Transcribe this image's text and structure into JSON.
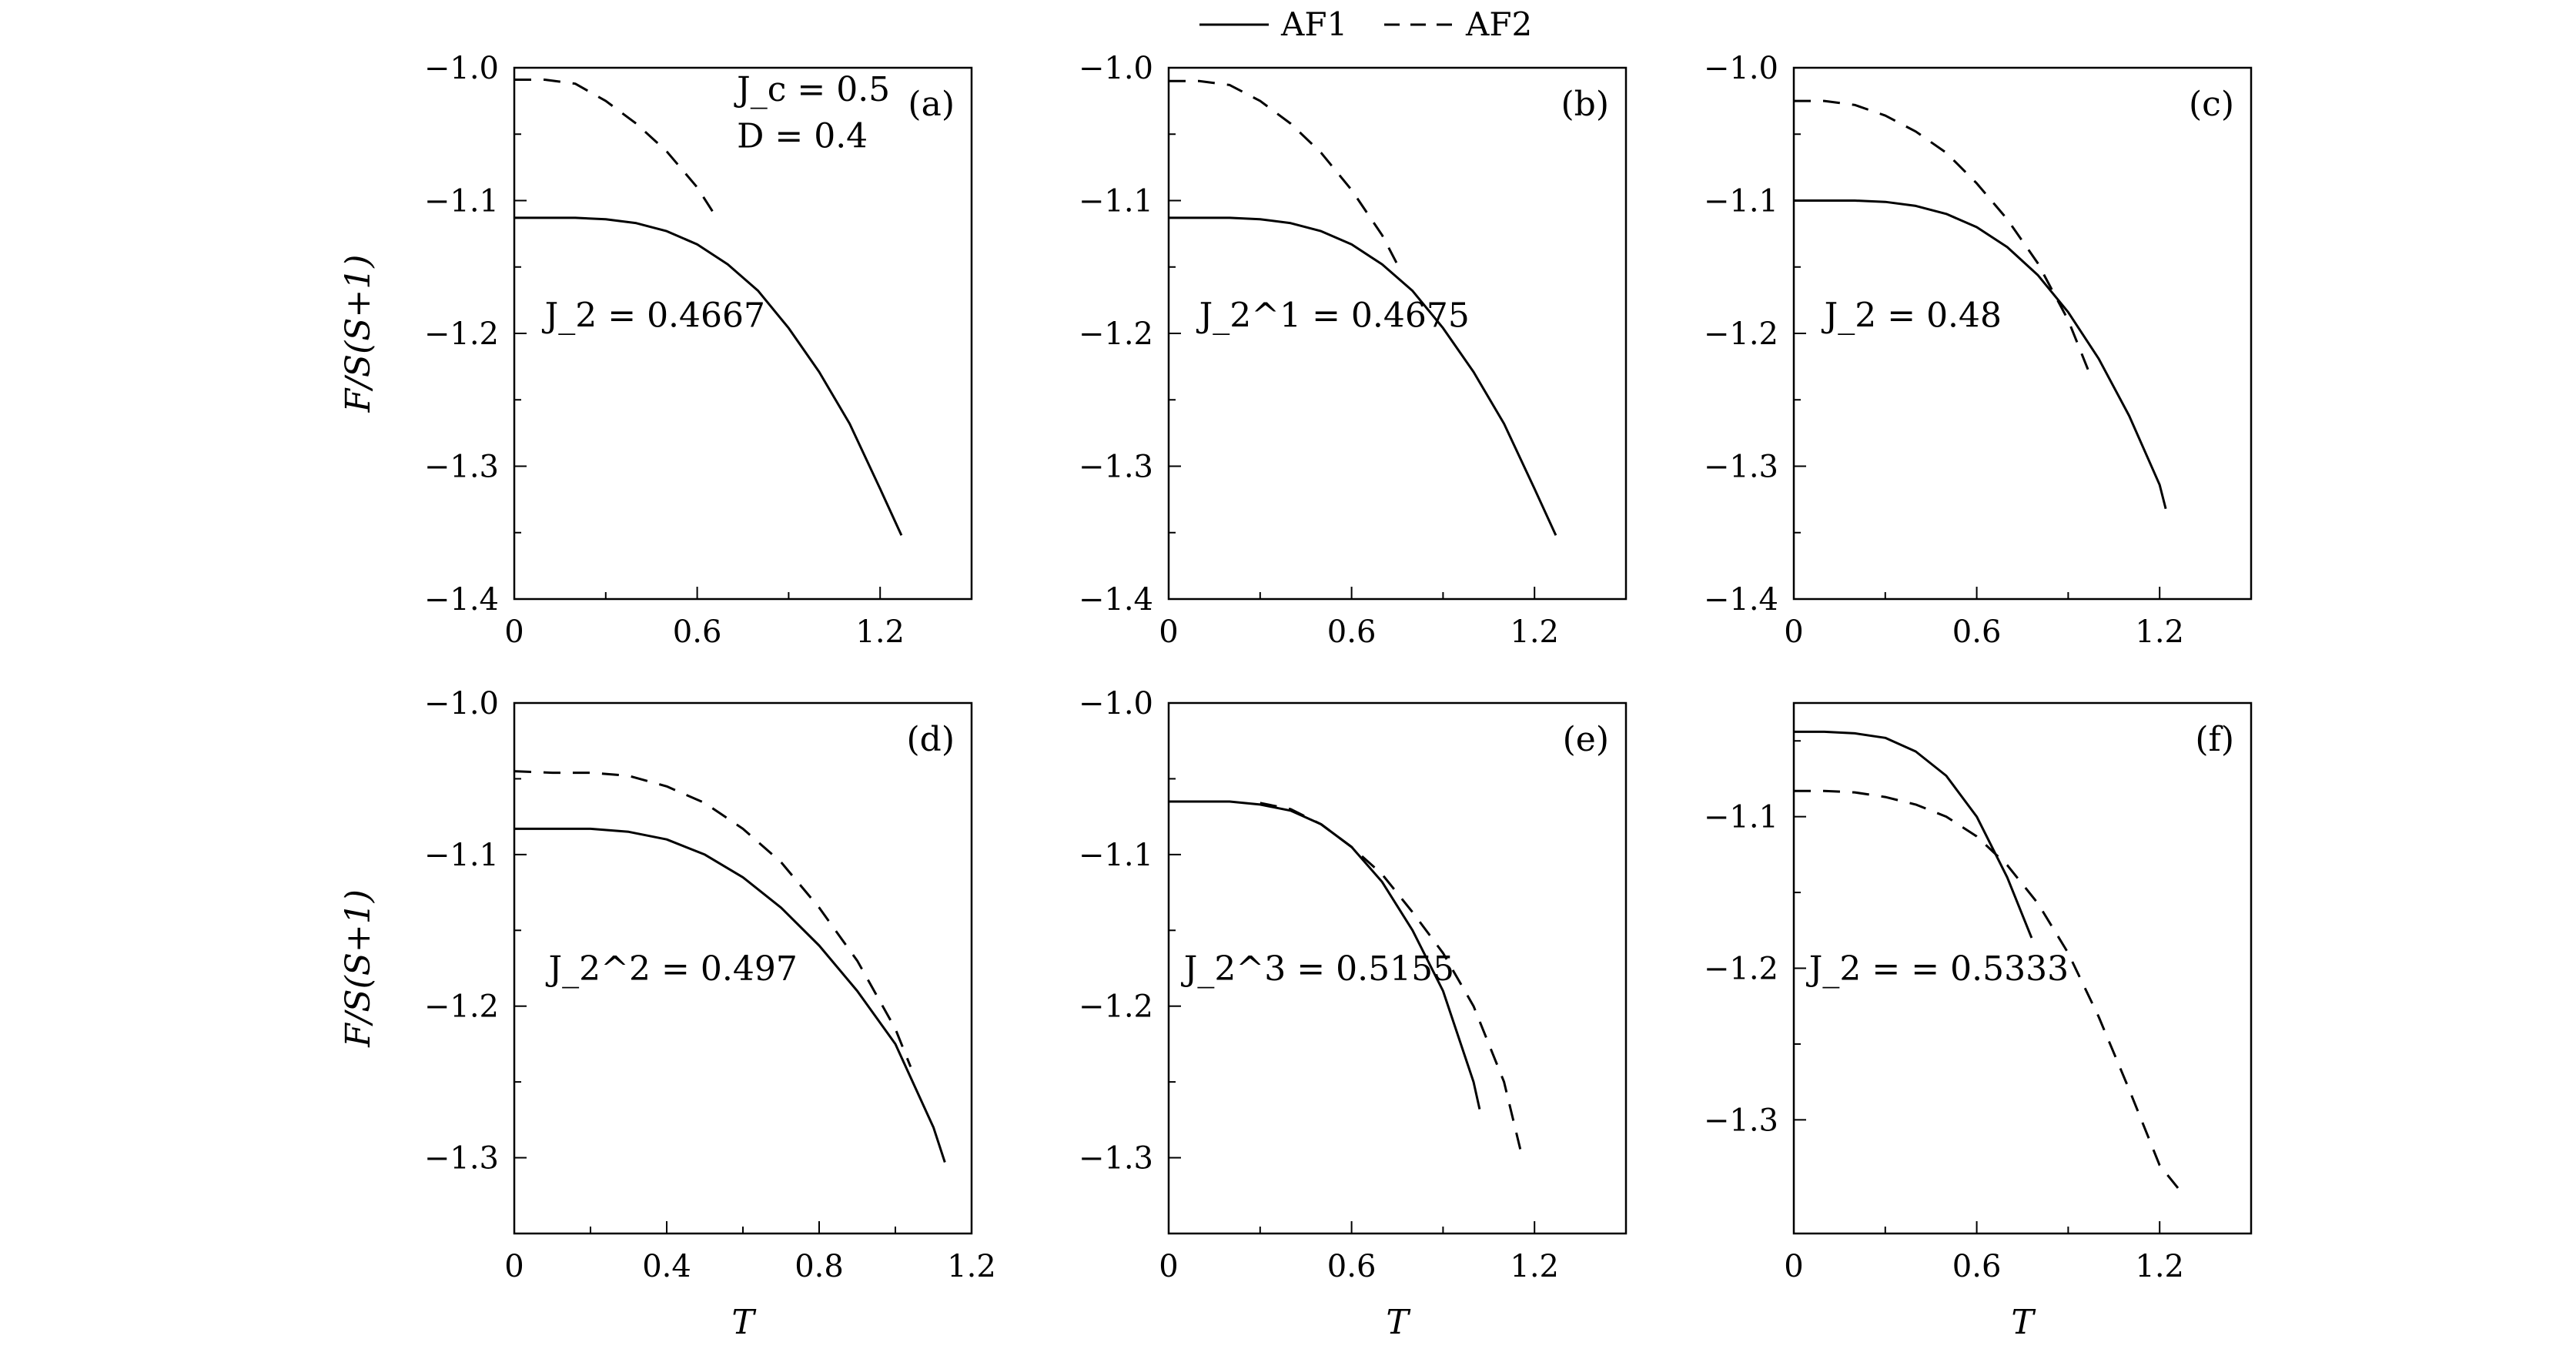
{
  "legend": {
    "entries": [
      {
        "label": "AF1",
        "dash": "solid"
      },
      {
        "label": "AF2",
        "dash": "dashed"
      }
    ],
    "placement": "top-center"
  },
  "chart_data": [
    {
      "type": "line",
      "panel": "(a)",
      "xlabel": "",
      "ylabel": "F/S(S+1)",
      "xlim": [
        0,
        1.5
      ],
      "ylim": [
        -1.4,
        -1.0
      ],
      "xticks": [
        0,
        0.6,
        1.2
      ],
      "xtick_labels": [
        "0",
        "0.6",
        "1.2"
      ],
      "yticks": [
        -1.4,
        -1.3,
        -1.2,
        -1.1,
        -1.0
      ],
      "ytick_labels": [
        "−1.4",
        "−1.3",
        "−1.2",
        "−1.1",
        "−1.0"
      ],
      "annotations": [
        {
          "text": "J_c = 0.5",
          "x": 0.73,
          "y": -1.025
        },
        {
          "text": "D = 0.4",
          "x": 0.73,
          "y": -1.06
        },
        {
          "text": "J_2 = 0.4667",
          "x": 0.1,
          "y": -1.195
        }
      ],
      "series": [
        {
          "name": "AF1",
          "dash": "solid",
          "x": [
            0,
            0.1,
            0.2,
            0.3,
            0.4,
            0.5,
            0.6,
            0.7,
            0.8,
            0.9,
            1.0,
            1.1,
            1.2,
            1.27
          ],
          "y": [
            -1.113,
            -1.113,
            -1.113,
            -1.114,
            -1.117,
            -1.123,
            -1.133,
            -1.148,
            -1.168,
            -1.196,
            -1.229,
            -1.268,
            -1.317,
            -1.352
          ]
        },
        {
          "name": "AF2",
          "dash": "dashed",
          "x": [
            0,
            0.1,
            0.2,
            0.3,
            0.4,
            0.5,
            0.6,
            0.65
          ],
          "y": [
            -1.009,
            -1.009,
            -1.012,
            -1.025,
            -1.042,
            -1.063,
            -1.09,
            -1.108
          ]
        }
      ]
    },
    {
      "type": "line",
      "panel": "(b)",
      "xlabel": "",
      "ylabel": "",
      "xlim": [
        0,
        1.5
      ],
      "ylim": [
        -1.4,
        -1.0
      ],
      "xticks": [
        0,
        0.6,
        1.2
      ],
      "xtick_labels": [
        "0",
        "0.6",
        "1.2"
      ],
      "yticks": [
        -1.4,
        -1.3,
        -1.2,
        -1.1,
        -1.0
      ],
      "ytick_labels": [
        "−1.4",
        "−1.3",
        "−1.2",
        "−1.1",
        "−1.0"
      ],
      "annotations": [
        {
          "text": "J_2^1 = 0.4675",
          "x": 0.1,
          "y": -1.195
        }
      ],
      "series": [
        {
          "name": "AF1",
          "dash": "solid",
          "x": [
            0,
            0.1,
            0.2,
            0.3,
            0.4,
            0.5,
            0.6,
            0.7,
            0.8,
            0.9,
            1.0,
            1.1,
            1.2,
            1.27
          ],
          "y": [
            -1.113,
            -1.113,
            -1.113,
            -1.114,
            -1.117,
            -1.123,
            -1.133,
            -1.148,
            -1.168,
            -1.196,
            -1.229,
            -1.268,
            -1.317,
            -1.352
          ]
        },
        {
          "name": "AF2",
          "dash": "dashed",
          "x": [
            0,
            0.1,
            0.2,
            0.3,
            0.4,
            0.5,
            0.6,
            0.7,
            0.75
          ],
          "y": [
            -1.01,
            -1.01,
            -1.013,
            -1.025,
            -1.042,
            -1.064,
            -1.092,
            -1.126,
            -1.148
          ]
        }
      ]
    },
    {
      "type": "line",
      "panel": "(c)",
      "xlabel": "",
      "ylabel": "",
      "xlim": [
        0,
        1.5
      ],
      "ylim": [
        -1.4,
        -1.0
      ],
      "xticks": [
        0,
        0.6,
        1.2
      ],
      "xtick_labels": [
        "0",
        "0.6",
        "1.2"
      ],
      "yticks": [
        -1.4,
        -1.3,
        -1.2,
        -1.1,
        -1.0
      ],
      "ytick_labels": [
        "−1.4",
        "−1.3",
        "−1.2",
        "−1.1",
        "−1.0"
      ],
      "annotations": [
        {
          "text": "J_2 = 0.48",
          "x": 0.1,
          "y": -1.195
        }
      ],
      "series": [
        {
          "name": "AF1",
          "dash": "solid",
          "x": [
            0,
            0.1,
            0.2,
            0.3,
            0.4,
            0.5,
            0.6,
            0.7,
            0.8,
            0.9,
            1.0,
            1.1,
            1.2,
            1.22
          ],
          "y": [
            -1.1,
            -1.1,
            -1.1,
            -1.101,
            -1.104,
            -1.11,
            -1.12,
            -1.135,
            -1.156,
            -1.184,
            -1.219,
            -1.262,
            -1.314,
            -1.332
          ]
        },
        {
          "name": "AF2",
          "dash": "dashed",
          "x": [
            0,
            0.1,
            0.2,
            0.3,
            0.4,
            0.5,
            0.6,
            0.7,
            0.8,
            0.9,
            0.97
          ],
          "y": [
            -1.025,
            -1.025,
            -1.028,
            -1.036,
            -1.048,
            -1.064,
            -1.087,
            -1.114,
            -1.147,
            -1.19,
            -1.23
          ]
        }
      ]
    },
    {
      "type": "line",
      "panel": "(d)",
      "xlabel": "T",
      "ylabel": "F/S(S+1)",
      "xlim": [
        0,
        1.2
      ],
      "ylim": [
        -1.35,
        -1.0
      ],
      "xticks": [
        0,
        0.4,
        0.8,
        1.2
      ],
      "xtick_labels": [
        "0",
        "0.4",
        "0.8",
        "1.2"
      ],
      "yticks": [
        -1.3,
        -1.2,
        -1.1,
        -1.0
      ],
      "ytick_labels": [
        "−1.3",
        "−1.2",
        "−1.1",
        "−1.0"
      ],
      "annotations": [
        {
          "text": "J_2^2 = 0.497",
          "x": 0.09,
          "y": -1.183
        }
      ],
      "series": [
        {
          "name": "AF1",
          "dash": "solid",
          "x": [
            0,
            0.1,
            0.2,
            0.3,
            0.4,
            0.5,
            0.6,
            0.7,
            0.8,
            0.9,
            1.0,
            1.1,
            1.13
          ],
          "y": [
            -1.083,
            -1.083,
            -1.083,
            -1.085,
            -1.09,
            -1.1,
            -1.115,
            -1.135,
            -1.16,
            -1.19,
            -1.225,
            -1.28,
            -1.303
          ]
        },
        {
          "name": "AF2",
          "dash": "dashed",
          "x": [
            0,
            0.1,
            0.2,
            0.3,
            0.4,
            0.5,
            0.6,
            0.7,
            0.8,
            0.9,
            1.0,
            1.04
          ],
          "y": [
            -1.045,
            -1.046,
            -1.046,
            -1.048,
            -1.055,
            -1.066,
            -1.083,
            -1.105,
            -1.135,
            -1.17,
            -1.215,
            -1.24
          ]
        }
      ]
    },
    {
      "type": "line",
      "panel": "(e)",
      "xlabel": "T",
      "ylabel": "",
      "xlim": [
        0,
        1.5
      ],
      "ylim": [
        -1.35,
        -1.0
      ],
      "xticks": [
        0,
        0.6,
        1.2
      ],
      "xtick_labels": [
        "0",
        "0.6",
        "1.2"
      ],
      "yticks": [
        -1.3,
        -1.2,
        -1.1,
        -1.0
      ],
      "ytick_labels": [
        "−1.3",
        "−1.2",
        "−1.1",
        "−1.0"
      ],
      "annotations": [
        {
          "text": "J_2^3 = 0.5155",
          "x": 0.05,
          "y": -1.183
        }
      ],
      "series": [
        {
          "name": "AF1",
          "dash": "solid",
          "x": [
            0,
            0.1,
            0.2,
            0.3,
            0.4,
            0.5,
            0.6,
            0.7,
            0.8,
            0.9,
            1.0,
            1.02
          ],
          "y": [
            -1.065,
            -1.065,
            -1.065,
            -1.067,
            -1.071,
            -1.08,
            -1.095,
            -1.118,
            -1.15,
            -1.19,
            -1.25,
            -1.268
          ]
        },
        {
          "name": "AF2",
          "dash": "dashed",
          "x": [
            0.3,
            0.4,
            0.5,
            0.6,
            0.7,
            0.8,
            0.9,
            1.0,
            1.1,
            1.16
          ],
          "y": [
            -1.066,
            -1.07,
            -1.08,
            -1.095,
            -1.113,
            -1.138,
            -1.165,
            -1.2,
            -1.25,
            -1.3
          ]
        }
      ]
    },
    {
      "type": "line",
      "panel": "(f)",
      "xlabel": "T",
      "ylabel": "",
      "xlim": [
        0,
        1.5
      ],
      "ylim": [
        -1.375,
        -1.025
      ],
      "xticks": [
        0,
        0.6,
        1.2
      ],
      "xtick_labels": [
        "0",
        "0.6",
        "1.2"
      ],
      "yticks": [
        -1.3,
        -1.2,
        -1.1
      ],
      "ytick_labels": [
        "−1.3",
        "−1.2",
        "−1.1"
      ],
      "annotations": [
        {
          "text": "J_2 = = 0.5333",
          "x": 0.05,
          "y": -1.208
        }
      ],
      "series": [
        {
          "name": "AF1",
          "dash": "solid",
          "x": [
            0,
            0.1,
            0.2,
            0.3,
            0.4,
            0.5,
            0.6,
            0.7,
            0.78
          ],
          "y": [
            -1.044,
            -1.044,
            -1.045,
            -1.048,
            -1.057,
            -1.073,
            -1.1,
            -1.14,
            -1.18
          ]
        },
        {
          "name": "AF2",
          "dash": "dashed",
          "x": [
            0,
            0.1,
            0.2,
            0.3,
            0.4,
            0.5,
            0.6,
            0.7,
            0.8,
            0.9,
            1.0,
            1.1,
            1.2,
            1.26
          ],
          "y": [
            -1.083,
            -1.083,
            -1.084,
            -1.087,
            -1.092,
            -1.1,
            -1.113,
            -1.132,
            -1.157,
            -1.19,
            -1.232,
            -1.28,
            -1.33,
            -1.345
          ]
        }
      ]
    }
  ]
}
